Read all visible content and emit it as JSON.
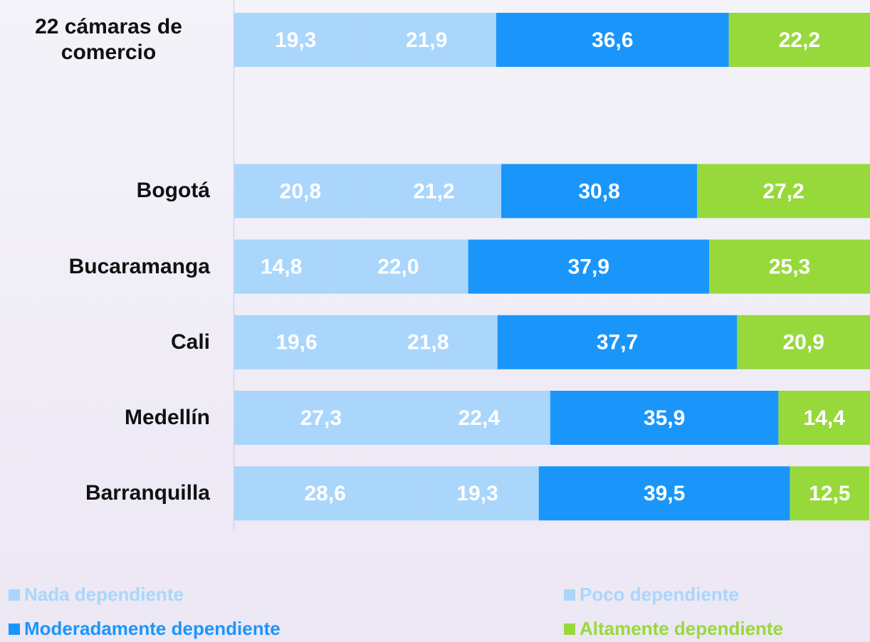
{
  "chart_data": {
    "type": "stacked-bar-horizontal",
    "categories": [
      "22 cámaras de comercio",
      "Bogotá",
      "Bucaramanga",
      "Cali",
      "Medellín",
      "Barranquilla"
    ],
    "xlim": [
      0,
      100
    ],
    "series": [
      {
        "name": "Nada dependiente",
        "color": "#aad6fc",
        "values": [
          19.3,
          20.8,
          14.8,
          19.6,
          27.3,
          28.6
        ],
        "value_labels": [
          "19,3",
          "20,8",
          "14,8",
          "19,6",
          "27,3",
          "28,6"
        ]
      },
      {
        "name": "Poco dependiente",
        "color": "#aad6fc",
        "values": [
          21.9,
          21.2,
          22.0,
          21.8,
          22.4,
          19.3
        ],
        "value_labels": [
          "21,9",
          "21,2",
          "22,0",
          "21,8",
          "22,4",
          "19,3"
        ]
      },
      {
        "name": "Moderadamente dependiente",
        "color": "#1a96fb",
        "values": [
          36.6,
          30.8,
          37.9,
          37.7,
          35.9,
          39.5
        ],
        "value_labels": [
          "36,6",
          "30,8",
          "37,9",
          "37,7",
          "35,9",
          "39,5"
        ]
      },
      {
        "name": "Altamente dependiente",
        "color": "#97d93b",
        "values": [
          22.2,
          27.2,
          25.3,
          20.9,
          14.4,
          12.5
        ],
        "value_labels": [
          "22,2",
          "27,2",
          "25,3",
          "20,9",
          "14,4",
          "12,5"
        ]
      }
    ],
    "legend": "bottom"
  }
}
